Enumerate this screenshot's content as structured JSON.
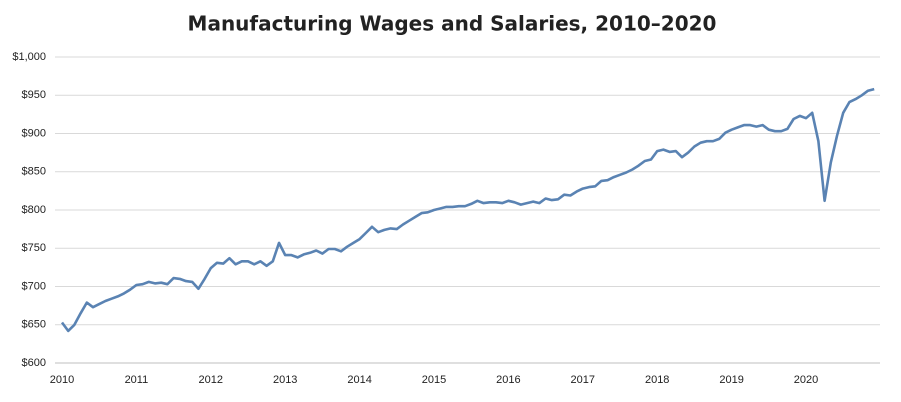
{
  "chart_data": {
    "type": "line",
    "title": "Manufacturing Wages and Salaries, 2010–2020",
    "categories": [
      "2010",
      null,
      null,
      null,
      null,
      null,
      null,
      null,
      null,
      null,
      null,
      null,
      "2011",
      null,
      null,
      null,
      null,
      null,
      null,
      null,
      null,
      null,
      null,
      null,
      "2012",
      null,
      null,
      null,
      null,
      null,
      null,
      null,
      null,
      null,
      null,
      null,
      "2013",
      null,
      null,
      null,
      null,
      null,
      null,
      null,
      null,
      null,
      null,
      null,
      "2014",
      null,
      null,
      null,
      null,
      null,
      null,
      null,
      null,
      null,
      null,
      null,
      "2015",
      null,
      null,
      null,
      null,
      null,
      null,
      null,
      null,
      null,
      null,
      null,
      "2016",
      null,
      null,
      null,
      null,
      null,
      null,
      null,
      null,
      null,
      null,
      null,
      "2017",
      null,
      null,
      null,
      null,
      null,
      null,
      null,
      null,
      null,
      null,
      null,
      "2018",
      null,
      null,
      null,
      null,
      null,
      null,
      null,
      null,
      null,
      null,
      null,
      "2019",
      null,
      null,
      null,
      null,
      null,
      null,
      null,
      null,
      null,
      null,
      null,
      "2020",
      null,
      null,
      null,
      null,
      null,
      null,
      null,
      null,
      null,
      null,
      null
    ],
    "values": [
      653,
      642,
      650,
      665,
      679,
      673,
      677,
      681,
      684,
      687,
      691,
      696,
      702,
      703,
      706,
      704,
      705,
      703,
      711,
      710,
      707,
      706,
      697,
      710,
      724,
      731,
      730,
      737,
      729,
      733,
      733,
      729,
      733,
      727,
      733,
      757,
      741,
      741,
      738,
      742,
      744,
      747,
      743,
      749,
      749,
      746,
      752,
      757,
      762,
      770,
      778,
      771,
      774,
      776,
      775,
      781,
      786,
      791,
      796,
      797,
      800,
      802,
      804,
      804,
      805,
      805,
      808,
      812,
      809,
      810,
      810,
      809,
      812,
      810,
      807,
      809,
      811,
      809,
      815,
      813,
      814,
      820,
      819,
      824,
      828,
      830,
      831,
      838,
      839,
      843,
      846,
      849,
      853,
      858,
      864,
      866,
      877,
      879,
      876,
      877,
      869,
      875,
      883,
      888,
      890,
      890,
      893,
      901,
      905,
      908,
      911,
      911,
      909,
      911,
      905,
      903,
      903,
      906,
      919,
      923,
      920,
      927,
      890,
      812,
      862,
      897,
      927,
      941,
      945,
      950,
      956,
      958
    ],
    "color": "#5a83b3",
    "ylim": [
      600,
      1000
    ],
    "yticks": [
      {
        "value": 600,
        "label": "$600"
      },
      {
        "value": 650,
        "label": "$650"
      },
      {
        "value": 700,
        "label": "$700"
      },
      {
        "value": 750,
        "label": "$750"
      },
      {
        "value": 800,
        "label": "$800"
      },
      {
        "value": 850,
        "label": "$850"
      },
      {
        "value": 900,
        "label": "$900"
      },
      {
        "value": 950,
        "label": "$950"
      },
      {
        "value": 1000,
        "label": "$1,000"
      }
    ],
    "grid": true
  }
}
